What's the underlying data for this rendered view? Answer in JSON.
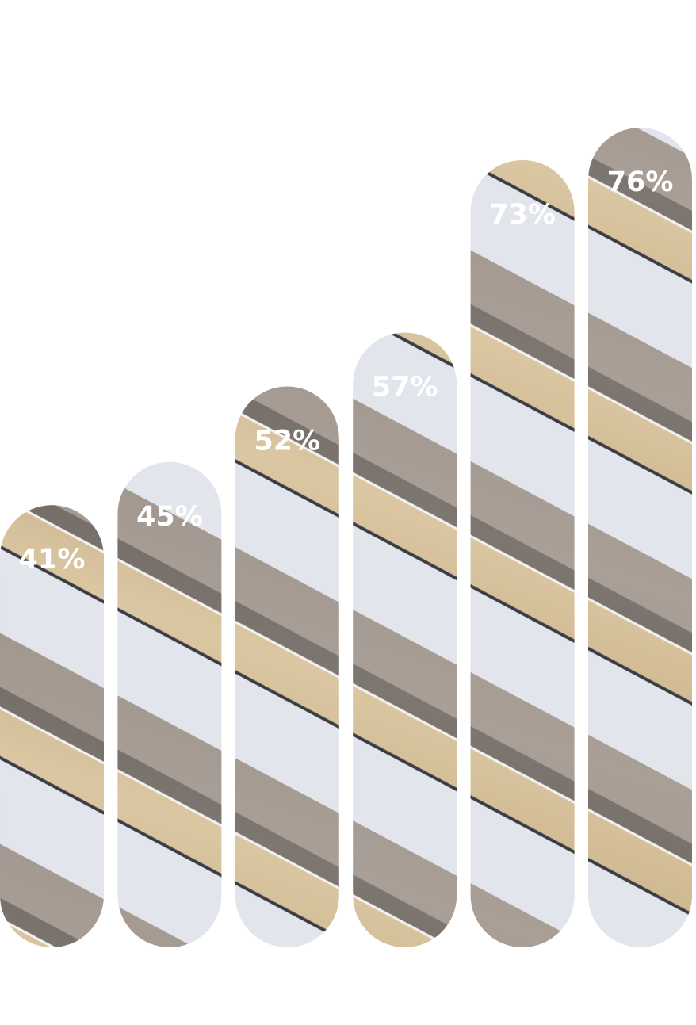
{
  "chart_data": {
    "type": "bar",
    "categories": [
      null,
      null,
      null,
      null,
      null,
      null
    ],
    "values": [
      41,
      45,
      52,
      57,
      73,
      76
    ],
    "value_labels": [
      "41%",
      "45%",
      "52%",
      "57%",
      "73%",
      "76%"
    ]
  }
}
